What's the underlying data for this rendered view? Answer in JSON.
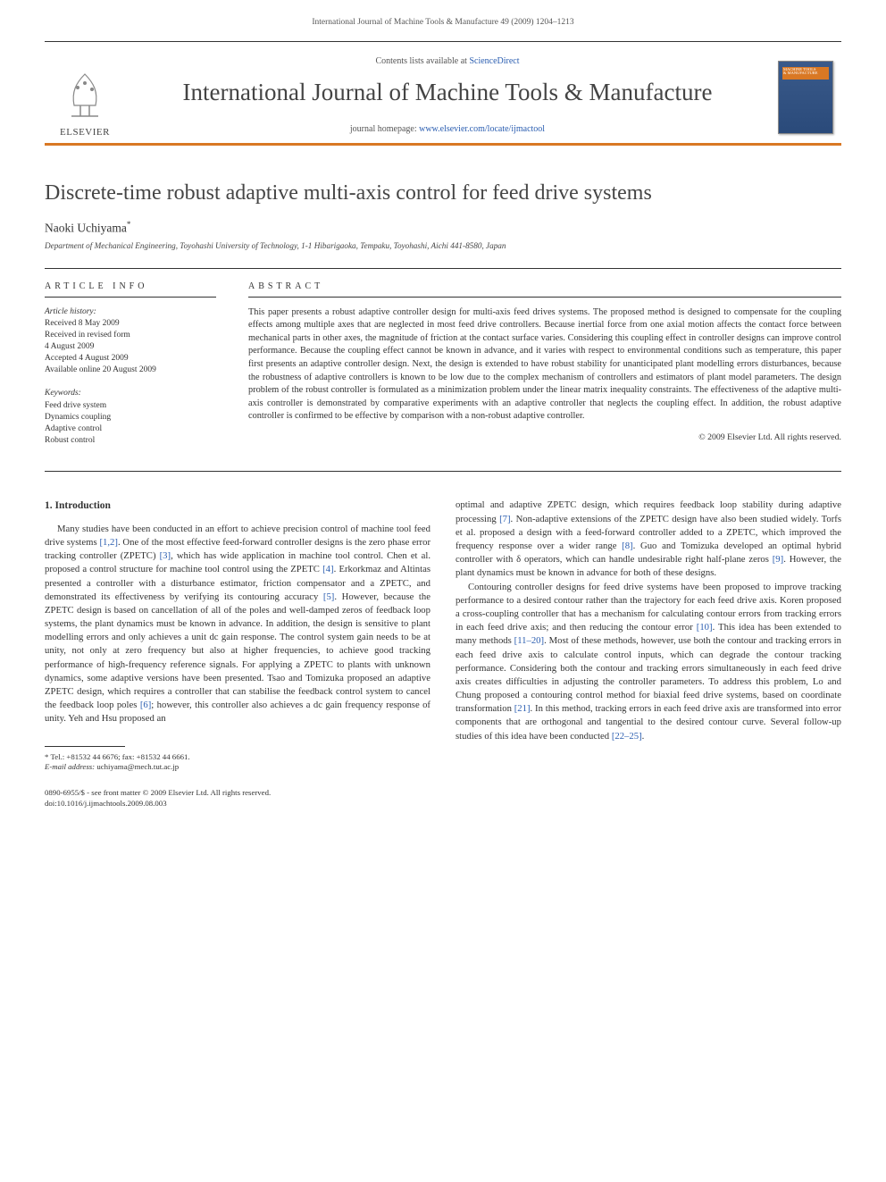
{
  "running_header": "International Journal of Machine Tools & Manufacture 49 (2009) 1204–1213",
  "banner": {
    "elsevier_label": "ELSEVIER",
    "contents_prefix": "Contents lists available at ",
    "contents_link": "ScienceDirect",
    "journal_name": "International Journal of Machine Tools & Manufacture",
    "homepage_prefix": "journal homepage: ",
    "homepage_link": "www.elsevier.com/locate/ijmactool",
    "thumb_line1": "MACHINE TOOLS",
    "thumb_line2": "& MANUFACTURE"
  },
  "article": {
    "title": "Discrete-time robust adaptive multi-axis control for feed drive systems",
    "author": "Naoki Uchiyama",
    "author_symbol": "*",
    "affiliation": "Department of Mechanical Engineering, Toyohashi University of Technology, 1-1 Hibarigaoka, Tempaku, Toyohashi, Aichi 441-8580, Japan"
  },
  "info": {
    "label": "ARTICLE INFO",
    "history_head": "Article history:",
    "history_lines": [
      "Received 8 May 2009",
      "Received in revised form",
      "4 August 2009",
      "Accepted 4 August 2009",
      "Available online 20 August 2009"
    ],
    "keywords_head": "Keywords:",
    "keywords": [
      "Feed drive system",
      "Dynamics coupling",
      "Adaptive control",
      "Robust control"
    ]
  },
  "abstract": {
    "label": "ABSTRACT",
    "text": "This paper presents a robust adaptive controller design for multi-axis feed drives systems. The proposed method is designed to compensate for the coupling effects among multiple axes that are neglected in most feed drive controllers. Because inertial force from one axial motion affects the contact force between mechanical parts in other axes, the magnitude of friction at the contact surface varies. Considering this coupling effect in controller designs can improve control performance. Because the coupling effect cannot be known in advance, and it varies with respect to environmental conditions such as temperature, this paper first presents an adaptive controller design. Next, the design is extended to have robust stability for unanticipated plant modelling errors disturbances, because the robustness of adaptive controllers is known to be low due to the complex mechanism of controllers and estimators of plant model parameters. The design problem of the robust controller is formulated as a minimization problem under the linear matrix inequality constraints. The effectiveness of the adaptive multi-axis controller is demonstrated by comparative experiments with an adaptive controller that neglects the coupling effect. In addition, the robust adaptive controller is confirmed to be effective by comparison with a non-robust adaptive controller.",
    "copyright": "© 2009 Elsevier Ltd. All rights reserved."
  },
  "body": {
    "heading": "1. Introduction",
    "col1_para": "Many studies have been conducted in an effort to achieve precision control of machine tool feed drive systems [1,2]. One of the most effective feed-forward controller designs is the zero phase error tracking controller (ZPETC) [3], which has wide application in machine tool control. Chen et al. proposed a control structure for machine tool control using the ZPETC [4]. Erkorkmaz and Altintas presented a controller with a disturbance estimator, friction compensator and a ZPETC, and demonstrated its effectiveness by verifying its contouring accuracy [5]. However, because the ZPETC design is based on cancellation of all of the poles and well-damped zeros of feedback loop systems, the plant dynamics must be known in advance. In addition, the design is sensitive to plant modelling errors and only achieves a unit dc gain response. The control system gain needs to be at unity, not only at zero frequency but also at higher frequencies, to achieve good tracking performance of high-frequency reference signals. For applying a ZPETC to plants with unknown dynamics, some adaptive versions have been presented. Tsao and Tomizuka proposed an adaptive ZPETC design, which requires a controller that can stabilise the feedback control system to cancel the feedback loop poles [6]; however, this controller also achieves a dc gain frequency response of unity. Yeh and Hsu proposed an",
    "col2_para": "optimal and adaptive ZPETC design, which requires feedback loop stability during adaptive processing [7]. Non-adaptive extensions of the ZPETC design have also been studied widely. Torfs et al. proposed a design with a feed-forward controller added to a ZPETC, which improved the frequency response over a wider range [8]. Guo and Tomizuka developed an optimal hybrid controller with δ operators, which can handle undesirable right half-plane zeros [9]. However, the plant dynamics must be known in advance for both of these designs.",
    "col2_para2": "Contouring controller designs for feed drive systems have been proposed to improve tracking performance to a desired contour rather than the trajectory for each feed drive axis. Koren proposed a cross-coupling controller that has a mechanism for calculating contour errors from tracking errors in each feed drive axis; and then reducing the contour error [10]. This idea has been extended to many methods [11–20]. Most of these methods, however, use both the contour and tracking errors in each feed drive axis to calculate control inputs, which can degrade the contour tracking performance. Considering both the contour and tracking errors simultaneously in each feed drive axis creates difficulties in adjusting the controller parameters. To address this problem, Lo and Chung proposed a contouring control method for biaxial feed drive systems, based on coordinate transformation [21]. In this method, tracking errors in each feed drive axis are transformed into error components that are orthogonal and tangential to the desired contour curve. Several follow-up studies of this idea have been conducted [22–25]."
  },
  "footnotes": {
    "tel": "* Tel.: +81532 44 6676; fax: +81532 44 6661.",
    "email_label": "E-mail address:",
    "email": "uchiyama@mech.tut.ac.jp"
  },
  "bottom": {
    "line1": "0890-6955/$ - see front matter © 2009 Elsevier Ltd. All rights reserved.",
    "line2": "doi:10.1016/j.ijmachtools.2009.08.003"
  },
  "colors": {
    "accent_orange": "#d97824",
    "link_blue": "#2a5db0",
    "text_dark": "#333333",
    "thumb_bg": "#2a4a7a"
  }
}
